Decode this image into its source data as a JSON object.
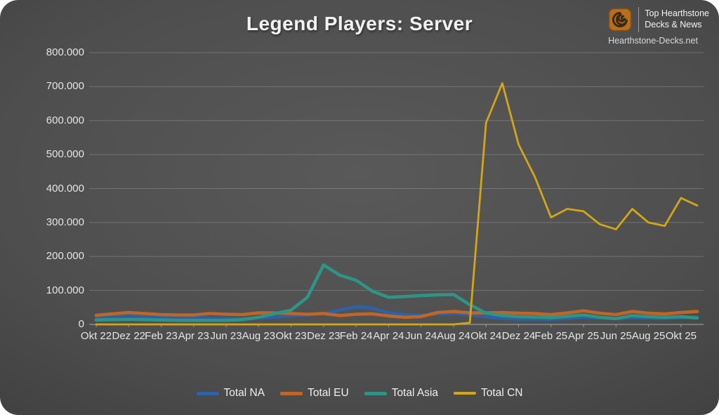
{
  "header": {
    "title": "Legend Players: Server",
    "logo": {
      "line1": "Top Hearthstone",
      "line2": "Decks & News",
      "site": "Hearthstone-Decks.net",
      "icon": "hearthstone-spiral-icon",
      "accent_color": "#c4731f"
    }
  },
  "chart_data": {
    "type": "line",
    "title": "Legend Players: Server",
    "x": [
      "Okt 22",
      "Nov 22",
      "Dez 22",
      "Jan 23",
      "Feb 23",
      "Mär 23",
      "Apr 23",
      "Mai 23",
      "Jun 23",
      "Jul 23",
      "Aug 23",
      "Sep 23",
      "Okt 23",
      "Nov 23",
      "Dez 23",
      "Jan 24",
      "Feb 24",
      "Mär 24",
      "Apr 24",
      "Mai 24",
      "Jun 24",
      "Jul 24",
      "Aug 24",
      "Sep 24",
      "Okt 24",
      "Nov 24",
      "Dez 24",
      "Jan 25",
      "Feb 25",
      "Mär 25",
      "Apr 25",
      "Mai 25",
      "Jun 25",
      "Jul 25",
      "Aug 25",
      "Sep 25",
      "Okt 25",
      "Nov 25"
    ],
    "x_tick_labels": [
      "Okt 22",
      "Dez 22",
      "Feb 23",
      "Apr 23",
      "Jun 23",
      "Aug 23",
      "Okt 23",
      "Dez 23",
      "Feb 24",
      "Apr 24",
      "Jun 24",
      "Aug 24",
      "Okt 24",
      "Dez 24",
      "Feb 25",
      "Apr 25",
      "Jun 25",
      "Aug 25",
      "Okt 25"
    ],
    "x_tick_every": 2,
    "y_ticks": [
      0,
      100000,
      200000,
      300000,
      400000,
      500000,
      600000,
      700000,
      800000
    ],
    "y_tick_labels": [
      "0",
      "100.000",
      "200.000",
      "300.000",
      "400.000",
      "500.000",
      "600.000",
      "700.000",
      "800.000"
    ],
    "ylim": [
      0,
      800000
    ],
    "grid": "horizontal",
    "legend_position": "bottom",
    "series": [
      {
        "name": "Total NA",
        "color": "#2d62a8",
        "values": [
          21000,
          24000,
          27000,
          23000,
          21000,
          20000,
          20000,
          19000,
          18000,
          17000,
          19000,
          22000,
          25000,
          28000,
          32000,
          42000,
          52000,
          48000,
          34000,
          29000,
          27000,
          30000,
          32000,
          28000,
          23000,
          18000,
          16000,
          16000,
          15000,
          18000,
          21000,
          19000,
          17000,
          20000,
          19000,
          18000,
          20000,
          22000
        ]
      },
      {
        "name": "Total EU",
        "color": "#c06525",
        "values": [
          27000,
          31000,
          35000,
          32000,
          29000,
          28000,
          28000,
          32000,
          30000,
          29000,
          34000,
          34000,
          32000,
          30000,
          32000,
          26000,
          30000,
          31000,
          25000,
          21000,
          23000,
          35000,
          38000,
          34000,
          34000,
          35000,
          33000,
          32000,
          29000,
          34000,
          40000,
          33000,
          29000,
          38000,
          33000,
          31000,
          35000,
          38000
        ]
      },
      {
        "name": "Total Asia",
        "color": "#2d9486",
        "values": [
          13000,
          14000,
          15000,
          14000,
          13000,
          12000,
          12000,
          12000,
          12000,
          14000,
          21000,
          32000,
          42000,
          80000,
          175000,
          145000,
          130000,
          98000,
          80000,
          82000,
          85000,
          87000,
          88000,
          58000,
          33000,
          26000,
          23000,
          22000,
          20000,
          24000,
          28000,
          21000,
          17000,
          26000,
          23000,
          21000,
          23000,
          19000
        ]
      },
      {
        "name": "Total CN",
        "color": "#d2a616",
        "values": [
          0,
          0,
          0,
          0,
          0,
          0,
          0,
          0,
          0,
          0,
          0,
          0,
          0,
          0,
          0,
          0,
          0,
          0,
          0,
          0,
          0,
          0,
          0,
          5000,
          593000,
          710000,
          530000,
          435000,
          315000,
          340000,
          333000,
          295000,
          280000,
          340000,
          300000,
          290000,
          372000,
          350000
        ]
      }
    ]
  }
}
